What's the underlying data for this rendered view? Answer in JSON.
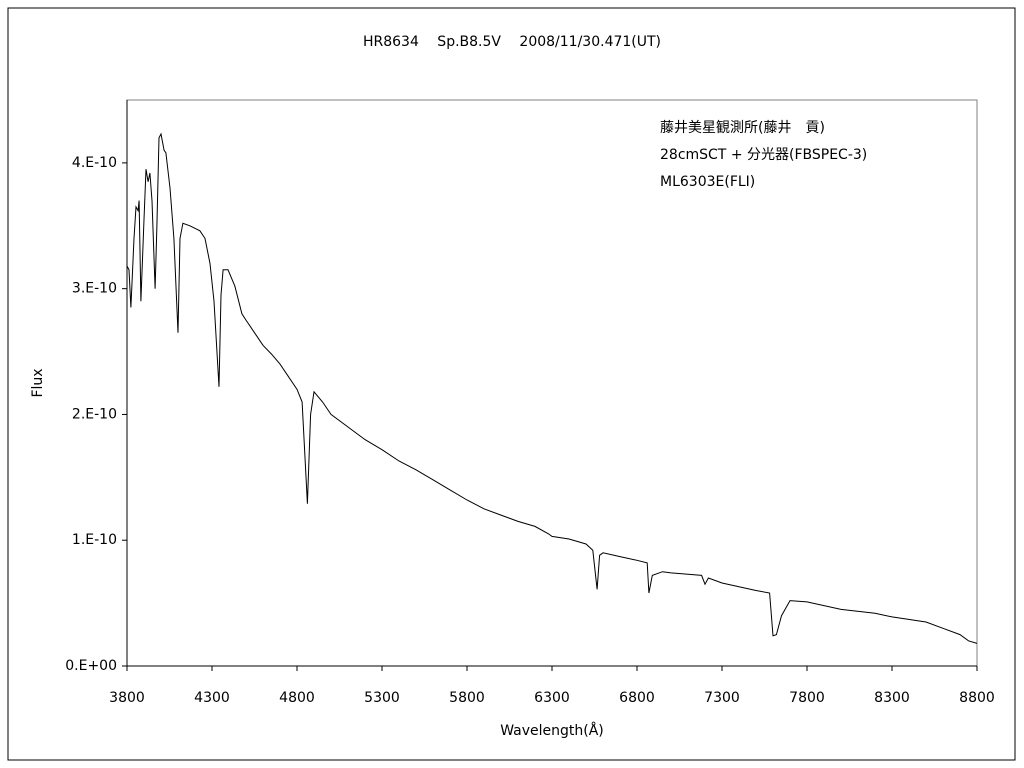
{
  "chart_data": {
    "type": "line",
    "title": "HR8634　 Sp.B8.5V　 2008/11/30.471(UT)",
    "annotations": [
      "藤井美星観測所(藤井　貢)",
      "28cmSCT + 分光器(FBSPEC-3)",
      "ML6303E(FLI)"
    ],
    "x_label": "Wavelength(Å)",
    "y_label": "Flux",
    "color": "#000000",
    "x": [
      3800,
      3812,
      3823,
      3841,
      3853,
      3865,
      3871,
      3882,
      3900,
      3912,
      3924,
      3935,
      3947,
      3965,
      3976,
      3988,
      4000,
      4018,
      4029,
      4053,
      4076,
      4100,
      4112,
      4129,
      4170,
      4229,
      4259,
      4288,
      4312,
      4341,
      4353,
      4365,
      4394,
      4435,
      4476,
      4500,
      4550,
      4600,
      4650,
      4700,
      4750,
      4800,
      4830,
      4861,
      4880,
      4900,
      4950,
      5000,
      5100,
      5200,
      5300,
      5400,
      5500,
      5600,
      5700,
      5800,
      5900,
      6000,
      6100,
      6200,
      6280,
      6300,
      6400,
      6500,
      6540,
      6565,
      6580,
      6600,
      6700,
      6800,
      6860,
      6870,
      6890,
      6950,
      7000,
      7100,
      7180,
      7200,
      7220,
      7300,
      7400,
      7500,
      7580,
      7600,
      7620,
      7650,
      7700,
      7800,
      8000,
      8200,
      8300,
      8500,
      8600,
      8700,
      8750,
      8800
    ],
    "values": [
      3.18e-10,
      3.15e-10,
      2.85e-10,
      3.4e-10,
      3.65e-10,
      3.62e-10,
      3.7e-10,
      2.9e-10,
      3.55e-10,
      3.95e-10,
      3.85e-10,
      3.92e-10,
      3.7e-10,
      3e-10,
      3.5e-10,
      4.2e-10,
      4.23e-10,
      4.1e-10,
      4.08e-10,
      3.8e-10,
      3.4e-10,
      2.65e-10,
      3.4e-10,
      3.52e-10,
      3.5e-10,
      3.46e-10,
      3.4e-10,
      3.2e-10,
      2.9e-10,
      2.22e-10,
      2.95e-10,
      3.15e-10,
      3.15e-10,
      3.02e-10,
      2.8e-10,
      2.75e-10,
      2.65e-10,
      2.55e-10,
      2.48e-10,
      2.4e-10,
      2.3e-10,
      2.2e-10,
      2.1e-10,
      1.29e-10,
      2e-10,
      2.18e-10,
      2.1e-10,
      2e-10,
      1.9e-10,
      1.8e-10,
      1.72e-10,
      1.63e-10,
      1.56e-10,
      1.48e-10,
      1.4e-10,
      1.32e-10,
      1.25e-10,
      1.2e-10,
      1.15e-10,
      1.11e-10,
      1.05e-10,
      1.03e-10,
      1.01e-10,
      9.7e-11,
      9.2e-11,
      6.1e-11,
      8.8e-11,
      9e-11,
      8.7e-11,
      8.4e-11,
      8.2e-11,
      5.8e-11,
      7.2e-11,
      7.5e-11,
      7.4e-11,
      7.3e-11,
      7.2e-11,
      6.5e-11,
      7e-11,
      6.6e-11,
      6.3e-11,
      6e-11,
      5.8e-11,
      2.4e-11,
      2.5e-11,
      4e-11,
      5.2e-11,
      5.1e-11,
      4.5e-11,
      4.2e-11,
      3.9e-11,
      3.5e-11,
      3e-11,
      2.5e-11,
      2e-11,
      1.8e-11
    ],
    "xlim": [
      3800,
      8800
    ],
    "xticks": [
      3800,
      4300,
      4800,
      5300,
      5800,
      6300,
      6800,
      7300,
      7800,
      8300,
      8800
    ],
    "ylim": [
      0,
      4.5e-10
    ],
    "yticks": [
      {
        "value": 0,
        "label": "0.E+00"
      },
      {
        "value": 1e-10,
        "label": "1.E-10"
      },
      {
        "value": 2e-10,
        "label": "2.E-10"
      },
      {
        "value": 3e-10,
        "label": "3.E-10"
      },
      {
        "value": 4e-10,
        "label": "4.E-10"
      }
    ]
  }
}
